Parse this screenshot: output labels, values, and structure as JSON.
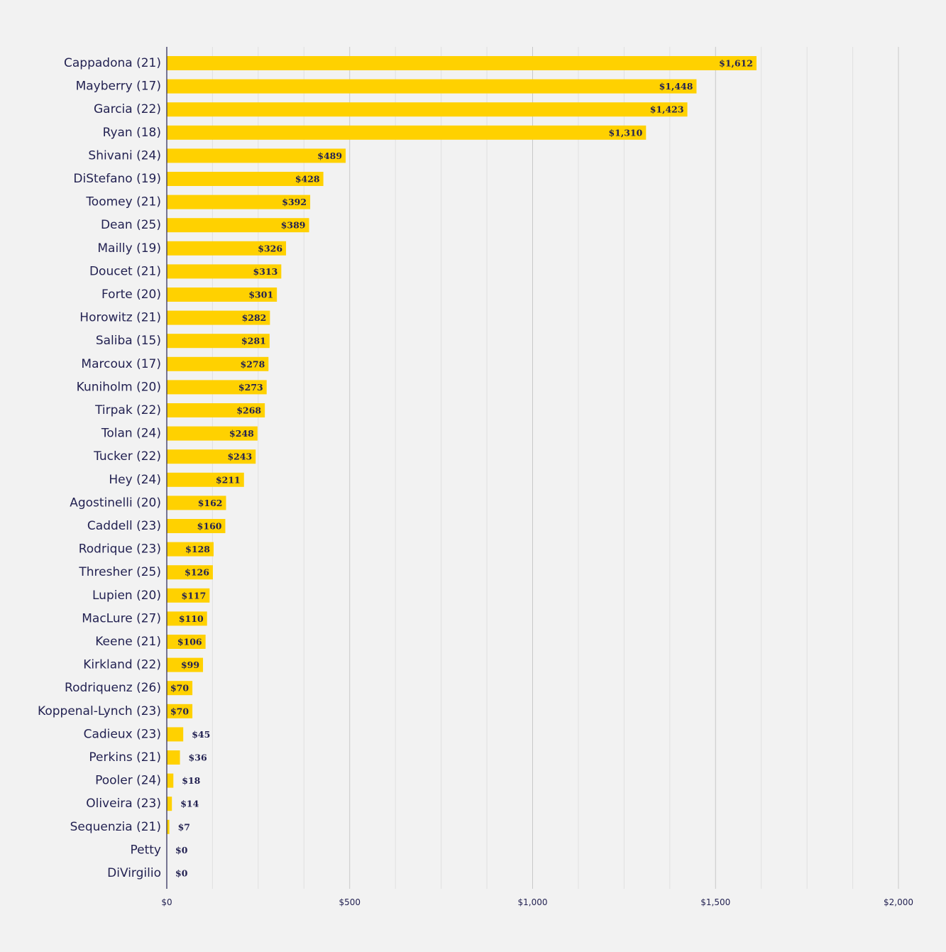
{
  "chart_data": {
    "type": "bar",
    "orientation": "horizontal",
    "title": "",
    "xlabel": "",
    "ylabel": "",
    "xlim": [
      0,
      2000
    ],
    "x_ticks": [
      0,
      500,
      1000,
      1500,
      2000
    ],
    "x_tick_labels": [
      "$0",
      "$500",
      "$1,000",
      "$1,500",
      "$2,000"
    ],
    "grid": true,
    "colors": {
      "bar": "#ffd100",
      "text": "#232252",
      "background": "#f2f2f2",
      "grid_major": "#c8c8c8",
      "grid_minor": "#e0e0e0",
      "axis": "#232252"
    },
    "categories": [
      "Cappadona (21)",
      "Mayberry (17)",
      "Garcia (22)",
      "Ryan (18)",
      "Shivani (24)",
      "DiStefano (19)",
      "Toomey (21)",
      "Dean (25)",
      "Mailly (19)",
      "Doucet (21)",
      "Forte (20)",
      "Horowitz (21)",
      "Saliba (15)",
      "Marcoux (17)",
      "Kuniholm (20)",
      "Tirpak (22)",
      "Tolan (24)",
      "Tucker (22)",
      "Hey (24)",
      "Agostinelli (20)",
      "Caddell (23)",
      "Rodrique (23)",
      "Thresher (25)",
      "Lupien (20)",
      "MacLure (27)",
      "Keene (21)",
      "Kirkland (22)",
      "Rodriquenz (26)",
      "Koppenal-Lynch (23)",
      "Cadieux (23)",
      "Perkins (21)",
      "Pooler (24)",
      "Oliveira (23)",
      "Sequenzia (21)",
      "Petty",
      "DiVirgilio"
    ],
    "values": [
      1612,
      1448,
      1423,
      1310,
      489,
      428,
      392,
      389,
      326,
      313,
      301,
      282,
      281,
      278,
      273,
      268,
      248,
      243,
      211,
      162,
      160,
      128,
      126,
      117,
      110,
      106,
      99,
      70,
      70,
      45,
      36,
      18,
      14,
      7,
      0,
      0
    ],
    "value_labels": [
      "$1,612",
      "$1,448",
      "$1,423",
      "$1,310",
      "$489",
      "$428",
      "$392",
      "$389",
      "$326",
      "$313",
      "$301",
      "$282",
      "$281",
      "$278",
      "$273",
      "$268",
      "$248",
      "$243",
      "$211",
      "$162",
      "$160",
      "$128",
      "$126",
      "$117",
      "$110",
      "$106",
      "$99",
      "$70",
      "$70",
      "$45",
      "$36",
      "$18",
      "$14",
      "$7",
      "$0",
      "$0"
    ]
  }
}
